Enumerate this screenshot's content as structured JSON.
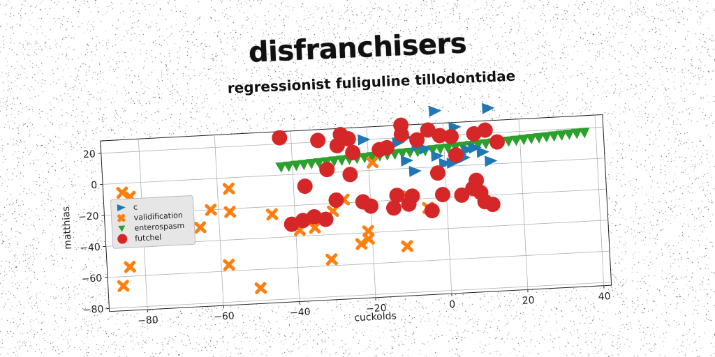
{
  "title": "disfranchisers",
  "subtitle": "regressionist fuliguline tillodontidae",
  "chart_data": {
    "type": "scatter",
    "xlabel": "cuckolds",
    "ylabel": "matthias",
    "xlim": [
      -90,
      42
    ],
    "ylim": [
      -82,
      28
    ],
    "xticks": [
      -80,
      -60,
      -40,
      -20,
      0,
      20,
      40
    ],
    "yticks": [
      -80,
      -60,
      -40,
      -20,
      0,
      20
    ],
    "grid": true,
    "legend_placement": "center-left",
    "series": [
      {
        "name": "c",
        "marker": "triangle-right",
        "color": "#1f77b4",
        "points": [
          [
            -2,
            37
          ],
          [
            3,
            25
          ],
          [
            12,
            36
          ],
          [
            -21,
            20
          ],
          [
            -12,
            17
          ],
          [
            -10,
            20
          ],
          [
            -7,
            14
          ],
          [
            -5,
            12
          ],
          [
            -10,
            5
          ],
          [
            -2,
            7
          ],
          [
            0,
            2
          ],
          [
            4,
            7
          ],
          [
            6,
            10
          ],
          [
            8,
            11
          ],
          [
            10,
            8
          ],
          [
            12,
            2
          ],
          [
            -8,
            -2
          ],
          [
            -2,
            -4
          ],
          [
            2,
            2
          ],
          [
            5,
            5
          ]
        ]
      },
      {
        "name": "validification",
        "marker": "x",
        "color": "#ff7f0e",
        "points": [
          [
            -85,
            -6
          ],
          [
            -83,
            -9
          ],
          [
            -57,
            -7
          ],
          [
            -62,
            -20
          ],
          [
            -57,
            -22
          ],
          [
            -46,
            -25
          ],
          [
            -65,
            -31
          ],
          [
            -84,
            -54
          ],
          [
            -86,
            -66
          ],
          [
            -58,
            -56
          ],
          [
            -50,
            -72
          ],
          [
            -31,
            -56
          ],
          [
            -39,
            -36
          ],
          [
            -35,
            -35
          ],
          [
            -21,
            -39
          ],
          [
            -23,
            -47
          ],
          [
            -21,
            -44
          ],
          [
            -11,
            -50
          ],
          [
            -30,
            -25
          ],
          [
            -27,
            -18
          ],
          [
            -19,
            5
          ],
          [
            -10,
            -18
          ],
          [
            -5,
            -26
          ]
        ]
      },
      {
        "name": "enterospasm",
        "marker": "triangle-down",
        "color": "#2ca02c",
        "points": [
          [
            -43,
            5
          ],
          [
            -41,
            5.3
          ],
          [
            -39,
            5.6
          ],
          [
            -37,
            5.9
          ],
          [
            -35,
            6.2
          ],
          [
            -33,
            6.5
          ],
          [
            -31,
            6.8
          ],
          [
            -29,
            7.1
          ],
          [
            -27,
            7.4
          ],
          [
            -25,
            7.7
          ],
          [
            -23,
            8
          ],
          [
            -21,
            8.3
          ],
          [
            -19,
            8.6
          ],
          [
            -17,
            8.9
          ],
          [
            -15,
            9.2
          ],
          [
            -13,
            9.5
          ],
          [
            -11,
            9.8
          ],
          [
            -9,
            10.1
          ],
          [
            -7,
            10.4
          ],
          [
            -5,
            10.7
          ],
          [
            -3,
            11
          ],
          [
            -1,
            11.3
          ],
          [
            1,
            11.6
          ],
          [
            3,
            11.9
          ],
          [
            5,
            12.2
          ],
          [
            7,
            12.5
          ],
          [
            9,
            12.8
          ],
          [
            11,
            13.1
          ],
          [
            13,
            13.4
          ],
          [
            15,
            13.7
          ],
          [
            17,
            14
          ],
          [
            19,
            14.3
          ],
          [
            21,
            14.6
          ],
          [
            23,
            14.9
          ],
          [
            25,
            15.2
          ],
          [
            27,
            15.5
          ],
          [
            29,
            15.8
          ],
          [
            31,
            16.1
          ],
          [
            33,
            16.4
          ],
          [
            35,
            16.7
          ],
          [
            37,
            17
          ]
        ]
      },
      {
        "name": "futchel",
        "marker": "circle",
        "color": "#d62728",
        "points": [
          [
            -43,
            24
          ],
          [
            -33,
            21
          ],
          [
            -27,
            24
          ],
          [
            -25,
            21
          ],
          [
            -28,
            17
          ],
          [
            -24,
            12
          ],
          [
            -17,
            13
          ],
          [
            -15,
            14
          ],
          [
            -11,
            28
          ],
          [
            -11,
            22
          ],
          [
            -7,
            18
          ],
          [
            -4,
            24
          ],
          [
            -1,
            20
          ],
          [
            2,
            19
          ],
          [
            8,
            20
          ],
          [
            11,
            22
          ],
          [
            14,
            14
          ],
          [
            3,
            7
          ],
          [
            -31,
            2
          ],
          [
            -25,
            -2
          ],
          [
            -37,
            -8
          ],
          [
            -29,
            -18
          ],
          [
            -38,
            -30
          ],
          [
            -35,
            -28
          ],
          [
            -32,
            -30
          ],
          [
            -41,
            -32
          ],
          [
            -22,
            -20
          ],
          [
            -20,
            -23
          ],
          [
            -14,
            -25
          ],
          [
            -10,
            -23
          ],
          [
            -9,
            -18
          ],
          [
            -13,
            -17
          ],
          [
            -4,
            -28
          ],
          [
            -1,
            -18
          ],
          [
            4,
            -19
          ],
          [
            7,
            -15
          ],
          [
            8,
            -10
          ],
          [
            9,
            -18
          ],
          [
            10,
            -24
          ],
          [
            12,
            -26
          ],
          [
            -2,
            -4
          ]
        ]
      }
    ]
  }
}
